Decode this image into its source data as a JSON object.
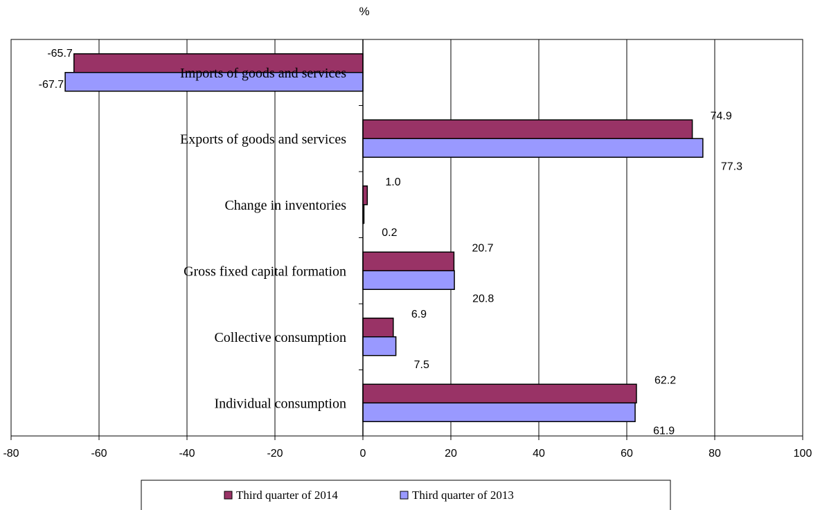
{
  "chart_data": {
    "type": "bar",
    "orientation": "horizontal",
    "unit": "%",
    "categories": [
      "Individual consumption",
      "Collective consumption",
      "Gross fixed capital formation",
      "Change in inventories",
      "Exports of goods and services",
      "Imports of goods and services"
    ],
    "series": [
      {
        "name": "Third quarter of 2014",
        "color": "#993366",
        "values": [
          62.2,
          6.9,
          20.7,
          1.0,
          74.9,
          -65.7
        ]
      },
      {
        "name": "Third quarter of 2013",
        "color": "#9999ff",
        "values": [
          61.9,
          7.5,
          20.8,
          0.2,
          77.3,
          -67.7
        ]
      }
    ],
    "xlim": [
      -80,
      100
    ],
    "xticks": [
      -80,
      -60,
      -40,
      -20,
      0,
      20,
      40,
      60,
      80,
      100
    ],
    "value_format_decimals": 1,
    "grid": "vertical",
    "legend": "bottom"
  }
}
